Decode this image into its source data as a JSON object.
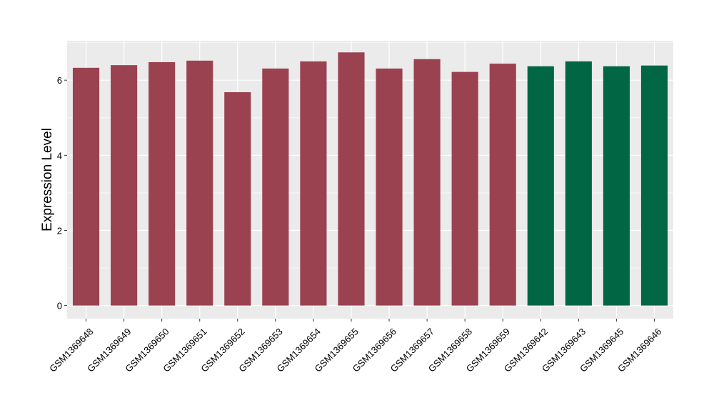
{
  "chart_data": {
    "type": "bar",
    "title": "",
    "xlabel": "",
    "ylabel": "Expression Level",
    "ylim": [
      -0.35,
      7.05
    ],
    "yticks": [
      0,
      2,
      4,
      6
    ],
    "grid": true,
    "categories": [
      "GSM1369648",
      "GSM1369649",
      "GSM1369650",
      "GSM1369651",
      "GSM1369652",
      "GSM1369653",
      "GSM1369654",
      "GSM1369655",
      "GSM1369656",
      "GSM1369657",
      "GSM1369658",
      "GSM1369659",
      "GSM1369642",
      "GSM1369643",
      "GSM1369645",
      "GSM1369646"
    ],
    "values": [
      6.33,
      6.4,
      6.48,
      6.52,
      5.68,
      6.31,
      6.5,
      6.74,
      6.31,
      6.56,
      6.22,
      6.44,
      6.37,
      6.5,
      6.37,
      6.39
    ],
    "bar_colors": [
      "#9b4251",
      "#9b4251",
      "#9b4251",
      "#9b4251",
      "#9b4251",
      "#9b4251",
      "#9b4251",
      "#9b4251",
      "#9b4251",
      "#9b4251",
      "#9b4251",
      "#9b4251",
      "#006644",
      "#006644",
      "#006644",
      "#006644"
    ],
    "panel_background": "#ebebeb",
    "grid_color": "#ffffff"
  }
}
